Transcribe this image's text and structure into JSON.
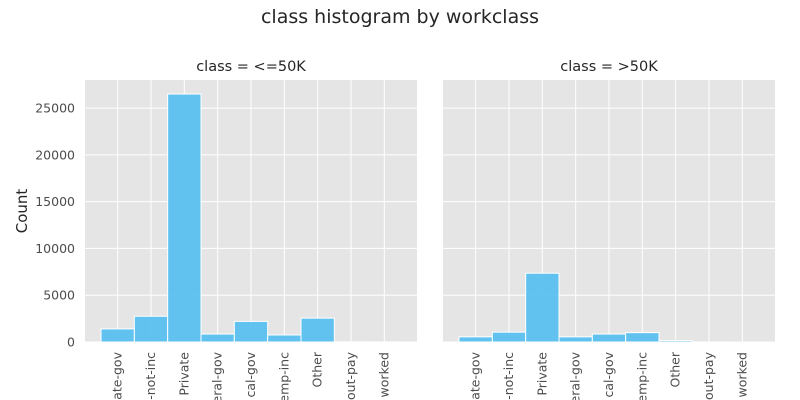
{
  "chart_data": {
    "type": "bar",
    "title": "class histogram by workclass",
    "xlabel": "",
    "ylabel": "Count",
    "ylim": [
      0,
      28000
    ],
    "yticks": [
      0,
      5000,
      10000,
      15000,
      20000,
      25000
    ],
    "grid": true,
    "categories": [
      "ate-gov",
      "-not-inc",
      "Private",
      "eral-gov",
      "cal-gov",
      "emp-inc",
      "Other",
      "out-pay",
      "worked"
    ],
    "panels": [
      {
        "title": "class = <=50K",
        "values": [
          1400,
          2750,
          26500,
          850,
          2200,
          750,
          2550,
          15,
          10
        ]
      },
      {
        "title": "class = >50K",
        "values": [
          550,
          1050,
          7350,
          550,
          850,
          1000,
          150,
          5,
          0
        ]
      }
    ],
    "colors": {
      "bar": "#5ac0f0",
      "bar_edge": "#ffffff",
      "panel_bg": "#e5e5e5",
      "grid": "#ffffff"
    }
  }
}
